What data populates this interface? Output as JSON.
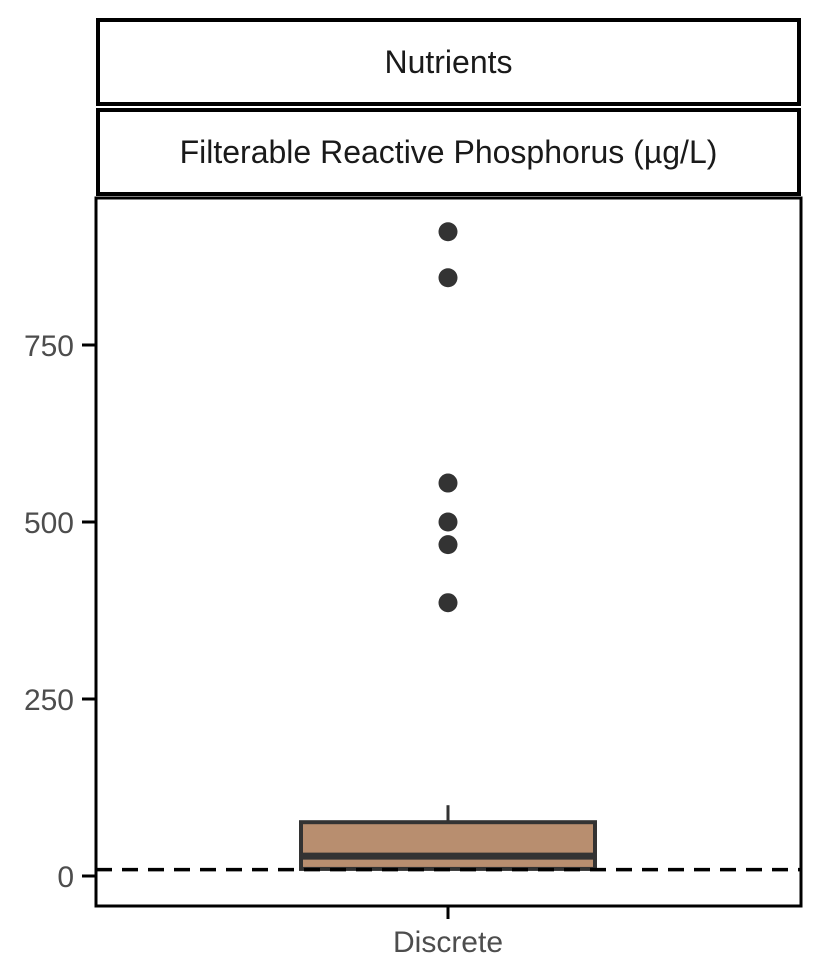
{
  "facet": {
    "top": "Nutrients",
    "bottom": "Filterable Reactive Phosphorus (µg/L)"
  },
  "chart_data": {
    "type": "boxplot",
    "title": "",
    "xlabel": "",
    "ylabel": "",
    "categories": [
      "Discrete"
    ],
    "ylim": [
      -40,
      955
    ],
    "yticks": [
      0,
      250,
      500,
      750
    ],
    "boxes": [
      {
        "category": "Discrete",
        "whisker_low": 8,
        "q1": 10,
        "median": 28,
        "q3": 76,
        "whisker_high": 100,
        "outliers": [
          910,
          845,
          555,
          500,
          468,
          386
        ]
      }
    ],
    "reference_line": {
      "y": 9,
      "style": "dashed"
    },
    "grid": false,
    "colors": {
      "box_fill": "#b88e6f",
      "box_line": "#333333",
      "outlier": "#333333",
      "reference": "#000000"
    }
  }
}
